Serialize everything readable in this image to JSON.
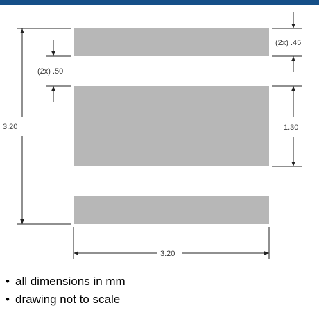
{
  "header": {
    "bar_color": "#154f88"
  },
  "drawing": {
    "pad_fill_color": "#b7b7b7",
    "line_color": "#222222",
    "labels": {
      "outer_pad_height": "(2x) .45",
      "gap": "(2x) .50",
      "total_height": "3.20",
      "center_pad_height": "1.30",
      "total_width": "3.20"
    },
    "pads": [
      "top-pad",
      "center-pad",
      "bottom-pad"
    ]
  },
  "notes": [
    {
      "bullet": "•",
      "text": "all dimensions in mm"
    },
    {
      "bullet": "•",
      "text": "drawing not to scale"
    }
  ]
}
